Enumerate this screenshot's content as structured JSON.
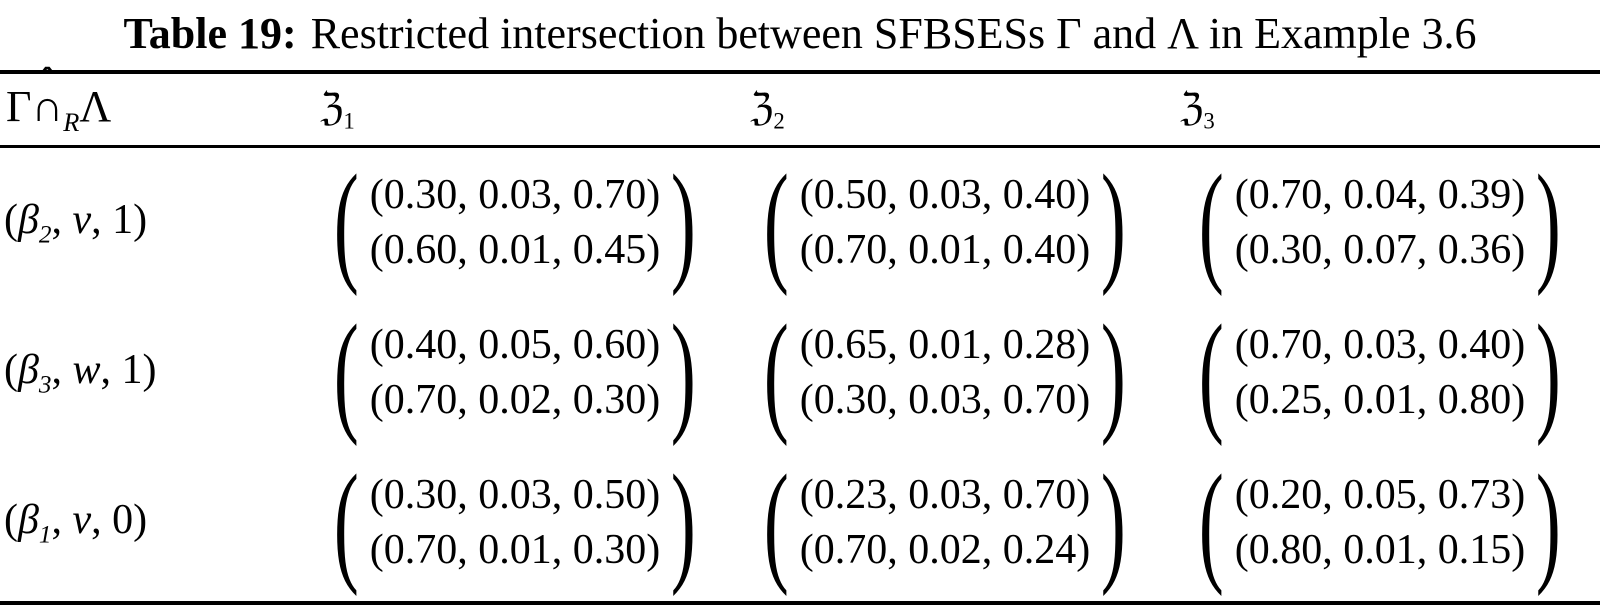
{
  "title": {
    "label": "Table 19:",
    "text": "Restricted intersection between SFBSESs Γ and Λ in Example 3.6"
  },
  "header": {
    "row_key": {
      "gamma": "Γ",
      "hat": "ˆ",
      "cap": "∩",
      "sub": "R",
      "lambda": "Λ"
    },
    "cols": [
      {
        "symbol": "ℨ",
        "sub": "1"
      },
      {
        "symbol": "ℨ",
        "sub": "2"
      },
      {
        "symbol": "ℨ",
        "sub": "3"
      }
    ]
  },
  "glyphs": {
    "paren_open": "(",
    "paren_close": ")"
  },
  "rows": [
    {
      "label": {
        "open": "(",
        "beta": "β",
        "sub": "2",
        "mid": ", ",
        "var": "v",
        "tail": ", 1)"
      },
      "cells": [
        {
          "top": "(0.30, 0.03, 0.70)",
          "bottom": "(0.60, 0.01, 0.45)"
        },
        {
          "top": "(0.50, 0.03, 0.40)",
          "bottom": "(0.70, 0.01, 0.40)"
        },
        {
          "top": "(0.70, 0.04, 0.39)",
          "bottom": "(0.30, 0.07, 0.36)"
        }
      ]
    },
    {
      "label": {
        "open": "(",
        "beta": "β",
        "sub": "3",
        "mid": ", ",
        "var": "w",
        "tail": ", 1)"
      },
      "cells": [
        {
          "top": "(0.40, 0.05, 0.60)",
          "bottom": "(0.70, 0.02, 0.30)"
        },
        {
          "top": "(0.65, 0.01, 0.28)",
          "bottom": "(0.30, 0.03, 0.70)"
        },
        {
          "top": "(0.70, 0.03, 0.40)",
          "bottom": "(0.25, 0.01, 0.80)"
        }
      ]
    },
    {
      "label": {
        "open": "(",
        "beta": "β",
        "sub": "1",
        "mid": ", ",
        "var": "v",
        "tail": ", 0)"
      },
      "cells": [
        {
          "top": "(0.30, 0.03, 0.50)",
          "bottom": "(0.70, 0.01, 0.30)"
        },
        {
          "top": "(0.23, 0.03, 0.70)",
          "bottom": "(0.70, 0.02, 0.24)"
        },
        {
          "top": "(0.20, 0.05, 0.73)",
          "bottom": "(0.80, 0.01, 0.15)"
        }
      ]
    }
  ]
}
